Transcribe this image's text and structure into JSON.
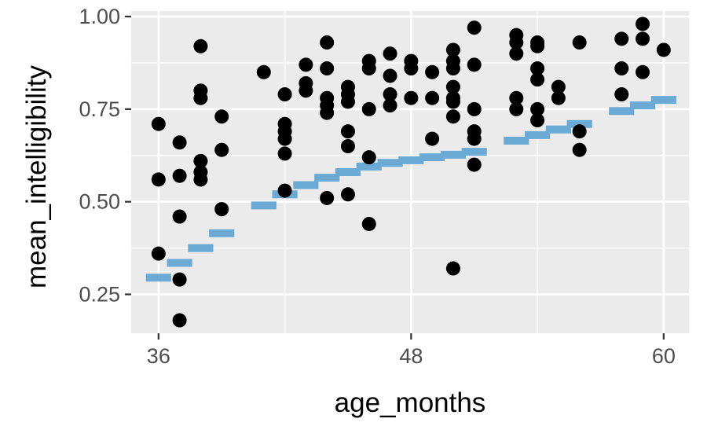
{
  "chart_data": {
    "type": "scatter",
    "xlabel": "age_months",
    "ylabel": "mean_intelligibility",
    "xlim": [
      34.7,
      61.2
    ],
    "ylim": [
      0.145,
      1.015
    ],
    "x_ticks": [
      36,
      48,
      60
    ],
    "x_tick_labels": [
      "36",
      "48",
      "60"
    ],
    "y_ticks": [
      0.25,
      0.5,
      0.75,
      1.0
    ],
    "y_tick_labels": [
      "0.25",
      "0.50",
      "0.75",
      "1.00"
    ],
    "grid": true,
    "colors": {
      "panel": "#ebebeb",
      "grid": "#ffffff",
      "points": "#000000",
      "fitted_steps": "#6baad4"
    },
    "points": [
      [
        36,
        0.71
      ],
      [
        36,
        0.56
      ],
      [
        36,
        0.36
      ],
      [
        37,
        0.66
      ],
      [
        37,
        0.57
      ],
      [
        37,
        0.46
      ],
      [
        37,
        0.29
      ],
      [
        37,
        0.18
      ],
      [
        38,
        0.92
      ],
      [
        38,
        0.8
      ],
      [
        38,
        0.78
      ],
      [
        38,
        0.61
      ],
      [
        38,
        0.58
      ],
      [
        38,
        0.56
      ],
      [
        39,
        0.73
      ],
      [
        39,
        0.64
      ],
      [
        39,
        0.48
      ],
      [
        41,
        0.85
      ],
      [
        42,
        0.79
      ],
      [
        42,
        0.71
      ],
      [
        42,
        0.69
      ],
      [
        42,
        0.67
      ],
      [
        42,
        0.63
      ],
      [
        42,
        0.53
      ],
      [
        43,
        0.87
      ],
      [
        43,
        0.82
      ],
      [
        43,
        0.8
      ],
      [
        44,
        0.93
      ],
      [
        44,
        0.86
      ],
      [
        44,
        0.78
      ],
      [
        44,
        0.76
      ],
      [
        44,
        0.74
      ],
      [
        44,
        0.51
      ],
      [
        45,
        0.81
      ],
      [
        45,
        0.79
      ],
      [
        45,
        0.77
      ],
      [
        45,
        0.69
      ],
      [
        45,
        0.65
      ],
      [
        45,
        0.52
      ],
      [
        46,
        0.88
      ],
      [
        46,
        0.86
      ],
      [
        46,
        0.75
      ],
      [
        46,
        0.62
      ],
      [
        46,
        0.44
      ],
      [
        47,
        0.9
      ],
      [
        47,
        0.84
      ],
      [
        47,
        0.79
      ],
      [
        47,
        0.76
      ],
      [
        48,
        0.88
      ],
      [
        48,
        0.86
      ],
      [
        48,
        0.78
      ],
      [
        49,
        0.85
      ],
      [
        49,
        0.78
      ],
      [
        49,
        0.67
      ],
      [
        50,
        0.91
      ],
      [
        50,
        0.88
      ],
      [
        50,
        0.86
      ],
      [
        50,
        0.81
      ],
      [
        50,
        0.78
      ],
      [
        50,
        0.77
      ],
      [
        50,
        0.73
      ],
      [
        50,
        0.32
      ],
      [
        51,
        0.97
      ],
      [
        51,
        0.87
      ],
      [
        51,
        0.75
      ],
      [
        51,
        0.69
      ],
      [
        51,
        0.67
      ],
      [
        51,
        0.6
      ],
      [
        53,
        0.95
      ],
      [
        53,
        0.93
      ],
      [
        53,
        0.9
      ],
      [
        53,
        0.78
      ],
      [
        53,
        0.75
      ],
      [
        54,
        0.93
      ],
      [
        54,
        0.92
      ],
      [
        54,
        0.86
      ],
      [
        54,
        0.83
      ],
      [
        54,
        0.75
      ],
      [
        54,
        0.72
      ],
      [
        55,
        0.81
      ],
      [
        55,
        0.78
      ],
      [
        56,
        0.93
      ],
      [
        56,
        0.69
      ],
      [
        56,
        0.64
      ],
      [
        58,
        0.94
      ],
      [
        58,
        0.86
      ],
      [
        58,
        0.79
      ],
      [
        59,
        0.98
      ],
      [
        59,
        0.94
      ],
      [
        59,
        0.85
      ],
      [
        60,
        0.91
      ]
    ],
    "fitted_steps": [
      [
        36,
        0.295
      ],
      [
        37,
        0.335
      ],
      [
        38,
        0.375
      ],
      [
        39,
        0.415
      ],
      [
        41,
        0.49
      ],
      [
        42,
        0.52
      ],
      [
        43,
        0.545
      ],
      [
        44,
        0.565
      ],
      [
        45,
        0.58
      ],
      [
        46,
        0.595
      ],
      [
        47,
        0.605
      ],
      [
        48,
        0.612
      ],
      [
        49,
        0.62
      ],
      [
        50,
        0.627
      ],
      [
        51,
        0.635
      ],
      [
        53,
        0.665
      ],
      [
        54,
        0.68
      ],
      [
        55,
        0.695
      ],
      [
        56,
        0.71
      ],
      [
        58,
        0.745
      ],
      [
        59,
        0.76
      ],
      [
        60,
        0.775
      ]
    ]
  }
}
